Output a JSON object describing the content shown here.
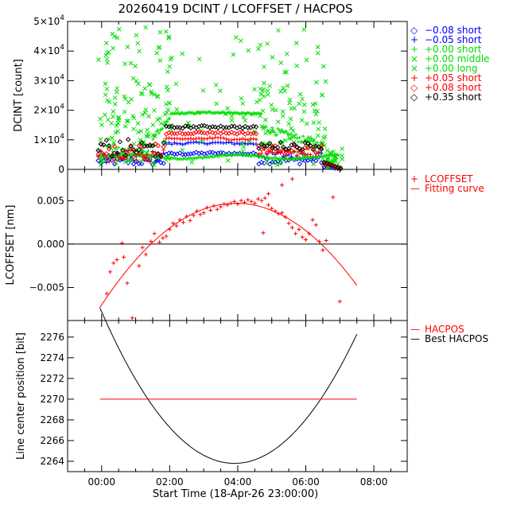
{
  "title": "20260419 DCINT / LCOFFSET / HACPOS",
  "xlabel": "Start Time (18-Apr-26 23:00:00)",
  "xticks": [
    "00:00",
    "02:00",
    "04:00",
    "06:00",
    "08:00"
  ],
  "chart_data": [
    {
      "name": "dcint",
      "type": "scatter",
      "ylabel": "DCINT [count]",
      "ylim": [
        0,
        50000
      ],
      "xlim": [
        -1.0,
        8.98
      ],
      "yticks": [
        {
          "v": 0,
          "base": "0",
          "exp": ""
        },
        {
          "v": 10000,
          "base": "1×10",
          "exp": "4"
        },
        {
          "v": 20000,
          "base": "2×10",
          "exp": "4"
        },
        {
          "v": 30000,
          "base": "3×10",
          "exp": "4"
        },
        {
          "v": 40000,
          "base": "4×10",
          "exp": "4"
        },
        {
          "v": 50000,
          "base": "5×10",
          "exp": "4"
        }
      ],
      "series": [
        {
          "name": "-0.08 short",
          "marker": "diamond",
          "color": "#0000ff",
          "level": 5500,
          "trend": "dip"
        },
        {
          "name": "-0.05 short",
          "marker": "plus",
          "color": "#0000ff",
          "level": 9000,
          "trend": "dip"
        },
        {
          "name": "+0.00 short",
          "marker": "plus",
          "color": "#00dd00",
          "level": 19000,
          "trend": "plateau"
        },
        {
          "name": "+0.00 middle",
          "marker": "cross",
          "color": "#00dd00",
          "level": 30000,
          "trend": "scatter"
        },
        {
          "name": "+0.00 long",
          "marker": "cross",
          "color": "#00dd00",
          "level": 45000,
          "trend": "scatter"
        },
        {
          "name": "+0.05 short",
          "marker": "plus",
          "color": "#ff0000",
          "level": 10500,
          "trend": "dip"
        },
        {
          "name": "+0.08 short",
          "marker": "diamond",
          "color": "#ff0000",
          "level": 12500,
          "trend": "dip"
        },
        {
          "name": "+0.35 short",
          "marker": "diamond",
          "color": "#000000",
          "level": 14500,
          "trend": "dip"
        }
      ],
      "legend": [
        {
          "label": "−0.08 short",
          "symbol": "◇",
          "color": "#0000ff"
        },
        {
          "label": "−0.05 short",
          "symbol": "+",
          "color": "#0000ff"
        },
        {
          "label": "+0.00 short",
          "symbol": "+",
          "color": "#00dd00"
        },
        {
          "label": "+0.00 middle",
          "symbol": "×",
          "color": "#00dd00"
        },
        {
          "label": "+0.00 long",
          "symbol": "×",
          "color": "#00dd00"
        },
        {
          "label": "+0.05 short",
          "symbol": "+",
          "color": "#ff0000"
        },
        {
          "label": "+0.08 short",
          "symbol": "◇",
          "color": "#ff0000"
        },
        {
          "label": "+0.35 short",
          "symbol": "◇",
          "color": "#000000"
        }
      ]
    },
    {
      "name": "lcoffset",
      "type": "scatter",
      "ylabel": "LCOFFSET [nm]",
      "ylim": [
        -0.0088,
        0.0086
      ],
      "xlim": [
        -1.0,
        8.98
      ],
      "yticks": [
        {
          "v": -0.005,
          "label": "−0.005"
        },
        {
          "v": 0.0,
          "label": "0.000"
        },
        {
          "v": 0.005,
          "label": "0.005"
        }
      ],
      "zero_line": 0.0,
      "color": "#ff0000",
      "points": [
        [
          0.15,
          -0.0057
        ],
        [
          0.25,
          -0.0032
        ],
        [
          0.35,
          -0.0022
        ],
        [
          0.45,
          -0.0018
        ],
        [
          0.6,
          0.0001
        ],
        [
          0.65,
          -0.0015
        ],
        [
          0.75,
          -0.0045
        ],
        [
          0.9,
          -0.0085
        ],
        [
          1.1,
          -0.0025
        ],
        [
          1.2,
          -0.0004
        ],
        [
          1.3,
          -0.0012
        ],
        [
          1.45,
          0.0003
        ],
        [
          1.55,
          0.0012
        ],
        [
          1.7,
          0.0002
        ],
        [
          1.8,
          0.0007
        ],
        [
          1.9,
          0.0009
        ],
        [
          2.0,
          0.0017
        ],
        [
          2.1,
          0.0024
        ],
        [
          2.2,
          0.0021
        ],
        [
          2.3,
          0.0028
        ],
        [
          2.4,
          0.0025
        ],
        [
          2.5,
          0.0032
        ],
        [
          2.6,
          0.0027
        ],
        [
          2.7,
          0.0033
        ],
        [
          2.8,
          0.0038
        ],
        [
          2.9,
          0.0034
        ],
        [
          3.0,
          0.0036
        ],
        [
          3.1,
          0.0042
        ],
        [
          3.2,
          0.0039
        ],
        [
          3.3,
          0.0044
        ],
        [
          3.4,
          0.004
        ],
        [
          3.5,
          0.0043
        ],
        [
          3.6,
          0.0046
        ],
        [
          3.7,
          0.0045
        ],
        [
          3.8,
          0.0047
        ],
        [
          3.9,
          0.0049
        ],
        [
          4.0,
          0.0046
        ],
        [
          4.1,
          0.005
        ],
        [
          4.2,
          0.0048
        ],
        [
          4.3,
          0.0051
        ],
        [
          4.4,
          0.0049
        ],
        [
          4.5,
          0.0047
        ],
        [
          4.6,
          0.0052
        ],
        [
          4.7,
          0.005
        ],
        [
          4.8,
          0.0053
        ],
        [
          4.9,
          0.0045
        ],
        [
          5.0,
          0.0041
        ],
        [
          5.1,
          0.0038
        ],
        [
          5.2,
          0.0035
        ],
        [
          5.3,
          0.0036
        ],
        [
          5.4,
          0.0031
        ],
        [
          5.5,
          0.0024
        ],
        [
          5.6,
          0.0019
        ],
        [
          5.7,
          0.0012
        ],
        [
          5.8,
          0.0017
        ],
        [
          5.9,
          0.0008
        ],
        [
          6.0,
          0.0005
        ],
        [
          6.1,
          0.0012
        ],
        [
          6.2,
          0.0028
        ],
        [
          6.3,
          0.0022
        ],
        [
          6.4,
          0.0003
        ],
        [
          6.5,
          -0.0007
        ],
        [
          6.6,
          0.0004
        ],
        [
          6.8,
          0.0054
        ],
        [
          7.0,
          -0.0066
        ],
        [
          4.75,
          0.0013
        ],
        [
          5.6,
          0.0075
        ],
        [
          5.3,
          0.0068
        ],
        [
          4.9,
          0.0058
        ]
      ],
      "fit": {
        "a": -0.00075,
        "h": 3.95,
        "k": 0.0047,
        "x0": -0.05,
        "x1": 7.5
      },
      "legend": [
        {
          "label": "LCOFFSET",
          "symbol": "+",
          "color": "#ff0000"
        },
        {
          "label": "Fitting curve",
          "symbol": "—",
          "color": "#ff0000"
        }
      ]
    },
    {
      "name": "hacpos",
      "type": "line",
      "ylabel": "Line center position [bit]",
      "ylim": [
        2263.0,
        2277.6
      ],
      "xlim": [
        -1.0,
        8.98
      ],
      "yticks": [
        {
          "v": 2264,
          "label": "2264"
        },
        {
          "v": 2266,
          "label": "2266"
        },
        {
          "v": 2268,
          "label": "2268"
        },
        {
          "v": 2270,
          "label": "2270"
        },
        {
          "v": 2272,
          "label": "2272"
        },
        {
          "v": 2274,
          "label": "2274"
        },
        {
          "v": 2276,
          "label": "2276"
        }
      ],
      "hacpos_value": 2270,
      "hacpos_range": [
        -0.05,
        7.5
      ],
      "best_curve": {
        "a": 0.963,
        "h": 3.9,
        "k": 2263.8,
        "x0": -0.05,
        "x1": 7.5
      },
      "legend": [
        {
          "label": "HACPOS",
          "symbol": "—",
          "color": "#ff0000"
        },
        {
          "label": "Best HACPOS",
          "symbol": "—",
          "color": "#000000"
        }
      ]
    }
  ]
}
